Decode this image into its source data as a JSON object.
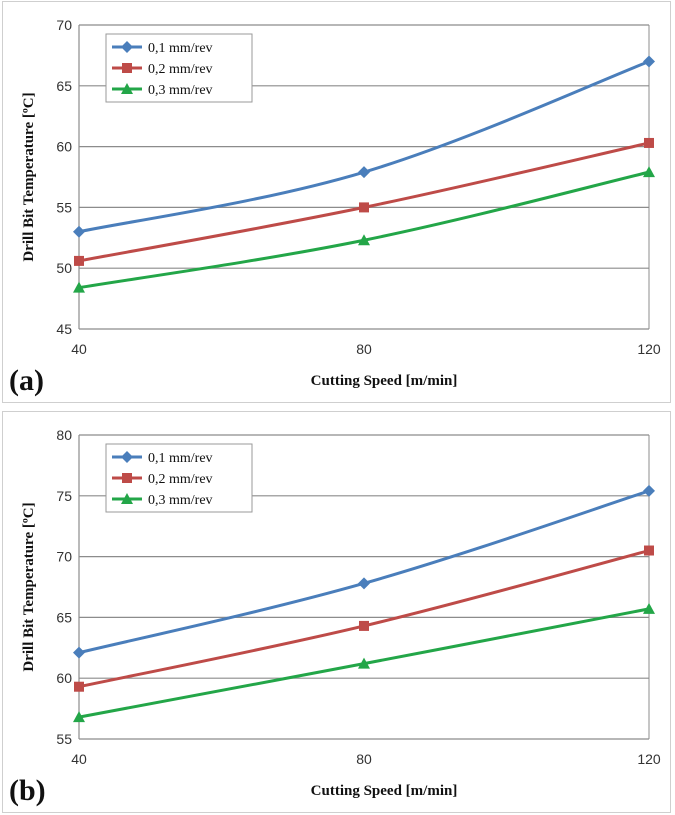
{
  "colors": {
    "s1": "#4a7ebb",
    "s2": "#be4b48",
    "s3": "#23a648",
    "grid": "#8c8c8c"
  },
  "chart_data": [
    {
      "type": "line",
      "panel_label": "(a)",
      "x": [
        40,
        80,
        120
      ],
      "xticks": [
        "40",
        "80",
        "120"
      ],
      "yticks": [
        "45",
        "50",
        "55",
        "60",
        "65",
        "70"
      ],
      "ylim": [
        45,
        70
      ],
      "xlabel": "Cutting Speed [m/min]",
      "ylabel": "Drill Bit Temperature [ºC]",
      "legend_position": "top-left",
      "series": [
        {
          "name": "0,1 mm/rev",
          "marker": "diamond",
          "values": [
            53.0,
            57.9,
            67.0
          ]
        },
        {
          "name": "0,2 mm/rev",
          "marker": "square",
          "values": [
            50.6,
            55.0,
            60.3
          ]
        },
        {
          "name": "0,3 mm/rev",
          "marker": "triangle",
          "values": [
            48.4,
            52.3,
            57.9
          ]
        }
      ]
    },
    {
      "type": "line",
      "panel_label": "(b)",
      "x": [
        40,
        80,
        120
      ],
      "xticks": [
        "40",
        "80",
        "120"
      ],
      "yticks": [
        "55",
        "60",
        "65",
        "70",
        "75",
        "80"
      ],
      "ylim": [
        55,
        80
      ],
      "xlabel": "Cutting Speed [m/min]",
      "ylabel": "Drill Bit Temperature [ºC]",
      "legend_position": "top-left",
      "series": [
        {
          "name": "0,1 mm/rev",
          "marker": "diamond",
          "values": [
            62.1,
            67.8,
            75.4
          ]
        },
        {
          "name": "0,2 mm/rev",
          "marker": "square",
          "values": [
            59.3,
            64.3,
            70.5
          ]
        },
        {
          "name": "0,3 mm/rev",
          "marker": "triangle",
          "values": [
            56.8,
            61.2,
            65.7
          ]
        }
      ]
    }
  ]
}
